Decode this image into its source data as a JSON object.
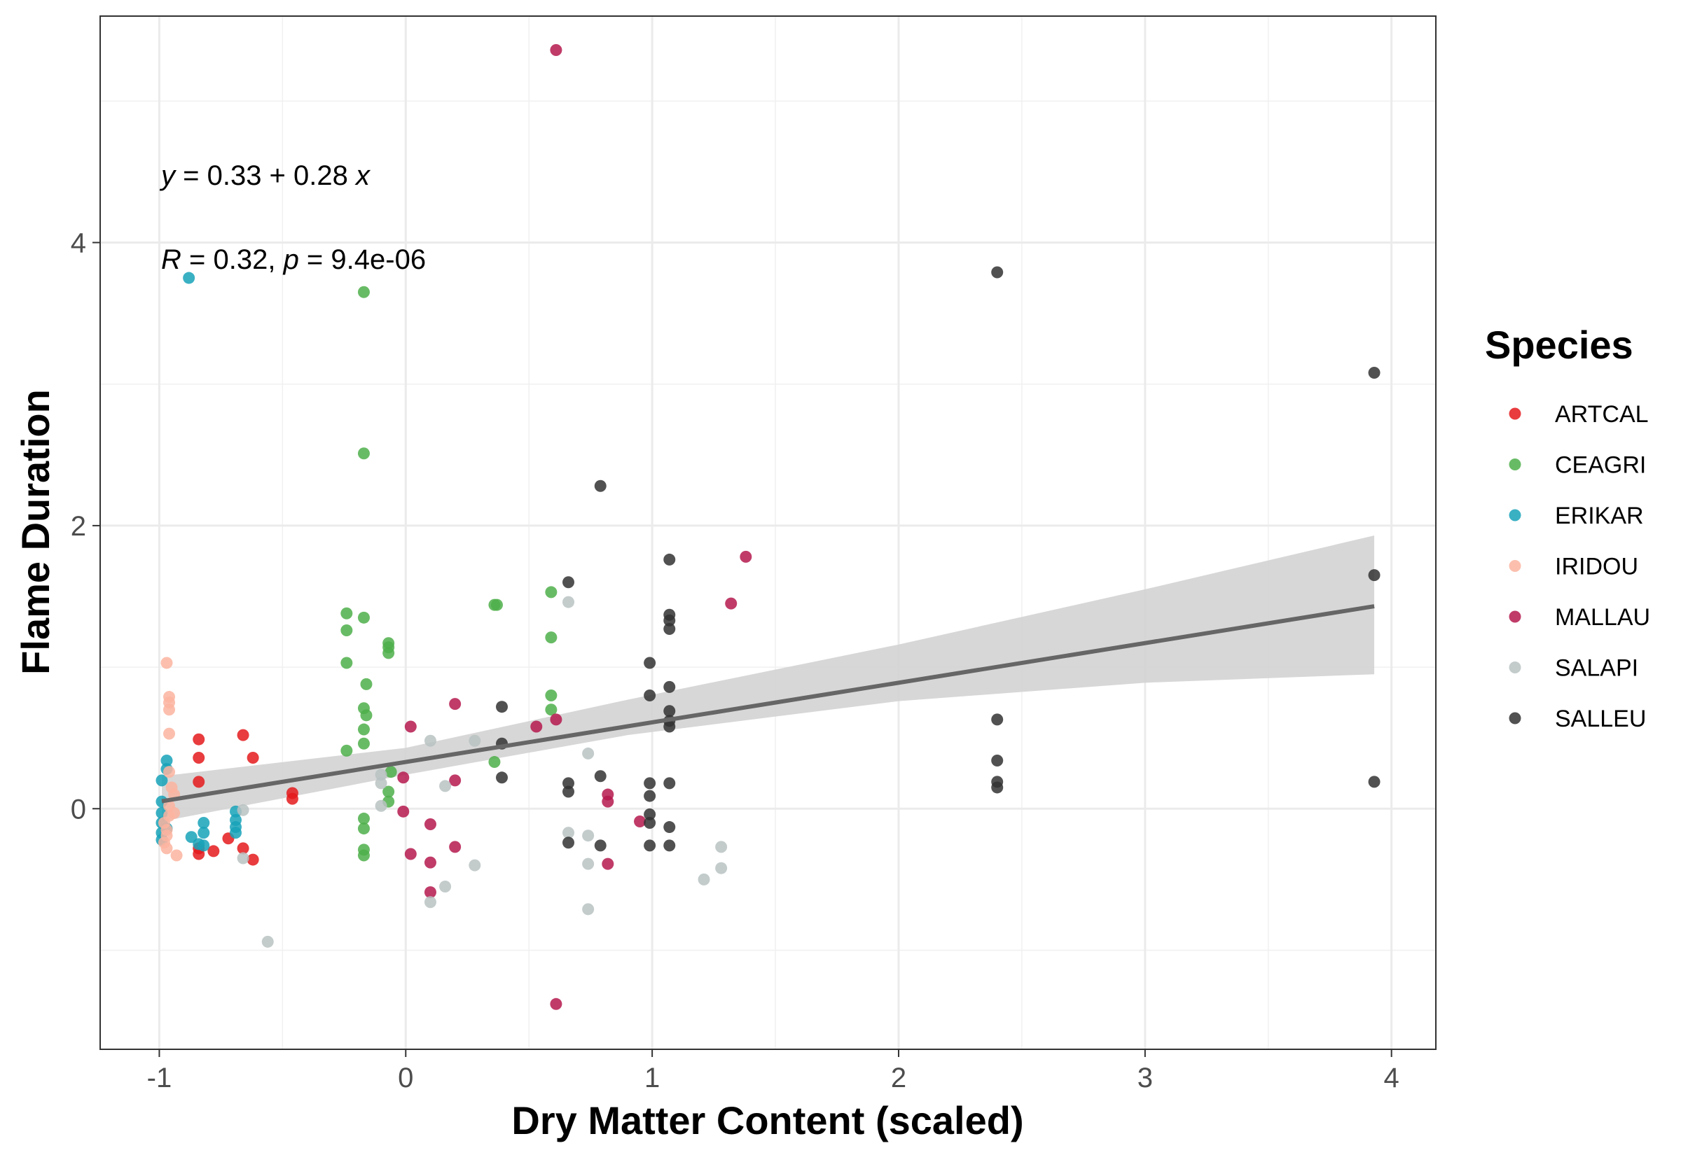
{
  "chart_data": {
    "type": "scatter",
    "xlabel": "Dry Matter Content (scaled)",
    "ylabel": "Flame Duration",
    "xlim": [
      -1.24,
      4.18
    ],
    "ylim": [
      -1.7,
      5.6
    ],
    "x_ticks": [
      -1,
      0,
      1,
      2,
      3,
      4
    ],
    "y_ticks": [
      0,
      2,
      4
    ],
    "grid": true,
    "legend_position": "right",
    "legend_title": "Species",
    "annotations": {
      "equation_y": "y",
      "equation_rest": " = 0.33 + 0.28 ",
      "equation_x": "x",
      "stat_r": "R",
      "stat_r_rest": " = 0.32, ",
      "stat_p": "p",
      "stat_p_rest": " = 9.4e-06"
    },
    "regression": {
      "intercept": 0.33,
      "slope": 0.28,
      "x_range": [
        -0.99,
        3.93
      ],
      "ci_lower": [
        [
          -0.99,
          -0.09
        ],
        [
          0,
          0.24
        ],
        [
          0.9,
          0.52
        ],
        [
          2,
          0.76
        ],
        [
          3,
          0.89
        ],
        [
          3.93,
          0.95
        ]
      ],
      "ci_upper": [
        [
          -0.99,
          0.23
        ],
        [
          0,
          0.43
        ],
        [
          0.9,
          0.77
        ],
        [
          2,
          1.16
        ],
        [
          3,
          1.55
        ],
        [
          3.93,
          1.93
        ]
      ],
      "line_color": "#666666",
      "band_color": "#d3d3d3"
    },
    "series": [
      {
        "name": "ARTCAL",
        "color": "#e41a1c",
        "points": [
          [
            -0.84,
            0.49
          ],
          [
            -0.84,
            0.36
          ],
          [
            -0.84,
            0.19
          ],
          [
            -0.84,
            -0.28
          ],
          [
            -0.84,
            -0.32
          ],
          [
            -0.78,
            -0.3
          ],
          [
            -0.72,
            -0.21
          ],
          [
            -0.66,
            0.52
          ],
          [
            -0.66,
            -0.28
          ],
          [
            -0.62,
            0.36
          ],
          [
            -0.62,
            -0.36
          ],
          [
            -0.46,
            0.11
          ],
          [
            -0.46,
            0.07
          ]
        ]
      },
      {
        "name": "CEAGRI",
        "color": "#4daf4a",
        "points": [
          [
            -0.17,
            3.65
          ],
          [
            -0.17,
            2.51
          ],
          [
            -0.24,
            1.38
          ],
          [
            -0.24,
            1.26
          ],
          [
            -0.17,
            1.35
          ],
          [
            -0.24,
            1.03
          ],
          [
            -0.16,
            0.88
          ],
          [
            -0.17,
            0.71
          ],
          [
            -0.16,
            0.66
          ],
          [
            -0.17,
            0.56
          ],
          [
            -0.17,
            0.46
          ],
          [
            -0.24,
            0.41
          ],
          [
            -0.17,
            -0.07
          ],
          [
            -0.17,
            -0.14
          ],
          [
            -0.17,
            -0.29
          ],
          [
            -0.17,
            -0.33
          ],
          [
            -0.07,
            1.17
          ],
          [
            -0.07,
            1.14
          ],
          [
            -0.07,
            1.1
          ],
          [
            -0.06,
            0.26
          ],
          [
            -0.07,
            0.12
          ],
          [
            -0.07,
            0.05
          ],
          [
            0.36,
            1.44
          ],
          [
            0.37,
            1.44
          ],
          [
            0.36,
            0.33
          ],
          [
            0.59,
            1.53
          ],
          [
            0.59,
            1.21
          ],
          [
            0.59,
            0.8
          ],
          [
            0.59,
            0.7
          ]
        ]
      },
      {
        "name": "ERIKAR",
        "color": "#17a2b8",
        "points": [
          [
            -0.88,
            3.75
          ],
          [
            -0.97,
            0.34
          ],
          [
            -0.99,
            0.2
          ],
          [
            -0.97,
            0.28
          ],
          [
            -0.99,
            0.05
          ],
          [
            -0.99,
            -0.03
          ],
          [
            -0.99,
            -0.1
          ],
          [
            -0.99,
            -0.17
          ],
          [
            -0.99,
            -0.22
          ],
          [
            -0.97,
            -0.14
          ],
          [
            -0.87,
            -0.2
          ],
          [
            -0.84,
            -0.25
          ],
          [
            -0.82,
            -0.1
          ],
          [
            -0.82,
            -0.17
          ],
          [
            -0.82,
            -0.26
          ],
          [
            -0.69,
            -0.02
          ],
          [
            -0.69,
            -0.08
          ],
          [
            -0.69,
            -0.13
          ],
          [
            -0.69,
            -0.17
          ]
        ]
      },
      {
        "name": "IRIDOU",
        "color": "#fbb4a0",
        "points": [
          [
            -0.97,
            1.03
          ],
          [
            -0.96,
            0.79
          ],
          [
            -0.96,
            0.75
          ],
          [
            -0.96,
            0.7
          ],
          [
            -0.96,
            0.53
          ],
          [
            -0.96,
            0.26
          ],
          [
            -0.95,
            0.15
          ],
          [
            -0.94,
            0.1
          ],
          [
            -0.96,
            0.02
          ],
          [
            -0.96,
            -0.05
          ],
          [
            -0.94,
            -0.03
          ],
          [
            -0.98,
            -0.1
          ],
          [
            -0.97,
            -0.15
          ],
          [
            -0.97,
            -0.19
          ],
          [
            -0.98,
            -0.24
          ],
          [
            -0.97,
            -0.28
          ],
          [
            -0.93,
            -0.33
          ]
        ]
      },
      {
        "name": "MALLAU",
        "color": "#b5194e",
        "points": [
          [
            0.61,
            5.36
          ],
          [
            0.61,
            -1.38
          ],
          [
            1.38,
            1.78
          ],
          [
            1.32,
            1.45
          ],
          [
            0.2,
            0.74
          ],
          [
            0.53,
            0.58
          ],
          [
            0.61,
            0.63
          ],
          [
            0.02,
            0.58
          ],
          [
            -0.01,
            0.22
          ],
          [
            0.2,
            0.2
          ],
          [
            -0.01,
            -0.02
          ],
          [
            0.1,
            -0.11
          ],
          [
            0.02,
            -0.32
          ],
          [
            0.1,
            -0.38
          ],
          [
            0.2,
            -0.27
          ],
          [
            0.1,
            -0.59
          ],
          [
            0.82,
            0.1
          ],
          [
            0.82,
            0.05
          ],
          [
            0.82,
            -0.39
          ],
          [
            0.95,
            -0.09
          ]
        ]
      },
      {
        "name": "SALAPI",
        "color": "#b8c2c2",
        "points": [
          [
            -0.66,
            -0.01
          ],
          [
            -0.66,
            -0.35
          ],
          [
            -0.56,
            -0.94
          ],
          [
            -0.1,
            0.24
          ],
          [
            -0.1,
            0.18
          ],
          [
            -0.1,
            0.02
          ],
          [
            0.1,
            0.48
          ],
          [
            0.16,
            0.16
          ],
          [
            0.16,
            -0.55
          ],
          [
            0.1,
            -0.66
          ],
          [
            0.28,
            0.48
          ],
          [
            0.28,
            -0.4
          ],
          [
            0.66,
            1.46
          ],
          [
            0.66,
            -0.17
          ],
          [
            0.74,
            0.39
          ],
          [
            0.74,
            -0.19
          ],
          [
            0.74,
            -0.39
          ],
          [
            0.74,
            -0.71
          ],
          [
            1.21,
            -0.5
          ],
          [
            1.28,
            -0.27
          ],
          [
            1.28,
            -0.42
          ]
        ]
      },
      {
        "name": "SALLEU",
        "color": "#333333",
        "points": [
          [
            2.4,
            3.79
          ],
          [
            3.93,
            3.08
          ],
          [
            3.93,
            1.65
          ],
          [
            3.93,
            0.19
          ],
          [
            2.4,
            0.63
          ],
          [
            2.4,
            0.34
          ],
          [
            2.4,
            0.19
          ],
          [
            2.4,
            0.15
          ],
          [
            0.79,
            2.28
          ],
          [
            0.66,
            1.6
          ],
          [
            1.07,
            1.76
          ],
          [
            1.07,
            1.37
          ],
          [
            1.07,
            1.33
          ],
          [
            1.07,
            1.27
          ],
          [
            0.99,
            1.03
          ],
          [
            1.07,
            0.86
          ],
          [
            0.99,
            0.8
          ],
          [
            1.07,
            0.69
          ],
          [
            1.07,
            0.62
          ],
          [
            1.07,
            0.58
          ],
          [
            1.07,
            0.18
          ],
          [
            1.07,
            -0.13
          ],
          [
            1.07,
            -0.26
          ],
          [
            0.39,
            0.72
          ],
          [
            0.39,
            0.46
          ],
          [
            0.39,
            0.22
          ],
          [
            0.66,
            0.18
          ],
          [
            0.66,
            0.12
          ],
          [
            0.66,
            -0.24
          ],
          [
            0.79,
            0.23
          ],
          [
            0.79,
            -0.26
          ],
          [
            0.99,
            0.18
          ],
          [
            0.99,
            0.09
          ],
          [
            0.99,
            -0.04
          ],
          [
            0.99,
            -0.1
          ],
          [
            0.99,
            -0.26
          ]
        ]
      }
    ]
  }
}
